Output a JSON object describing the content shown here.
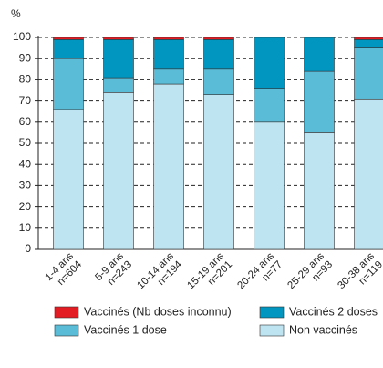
{
  "chart_data": {
    "type": "stacked_bar",
    "y_label": "%",
    "categories": [
      [
        "1-4 ans",
        "n=604"
      ],
      [
        "5-9 ans",
        "n=243"
      ],
      [
        "10-14 ans",
        "n=194"
      ],
      [
        "15-19 ans",
        "n=201"
      ],
      [
        "20-24 ans",
        "n=77"
      ],
      [
        "25-29 ans",
        "n=93"
      ],
      [
        "30-38 ans",
        "n=119"
      ]
    ],
    "series": [
      {
        "name": "Non vaccinés",
        "color": "#bfe4f1",
        "values": [
          66,
          74,
          78,
          73,
          60,
          55,
          71
        ]
      },
      {
        "name": "Vaccinés 1 dose",
        "color": "#5bbcd8",
        "values": [
          24,
          7,
          7,
          12,
          16,
          29,
          24
        ]
      },
      {
        "name": "Vaccinés 2 doses",
        "color": "#0096bf",
        "values": [
          9,
          18,
          14,
          14,
          24,
          16,
          4
        ]
      },
      {
        "name": "Vaccinés (Nb doses inconnu)",
        "color": "#e31b23",
        "values": [
          1,
          1,
          1,
          1,
          0,
          0,
          1
        ]
      }
    ],
    "ylim": [
      0,
      100
    ],
    "yticks": [
      0,
      10,
      20,
      30,
      40,
      50,
      60,
      70,
      80,
      90,
      100
    ],
    "grid": true
  }
}
